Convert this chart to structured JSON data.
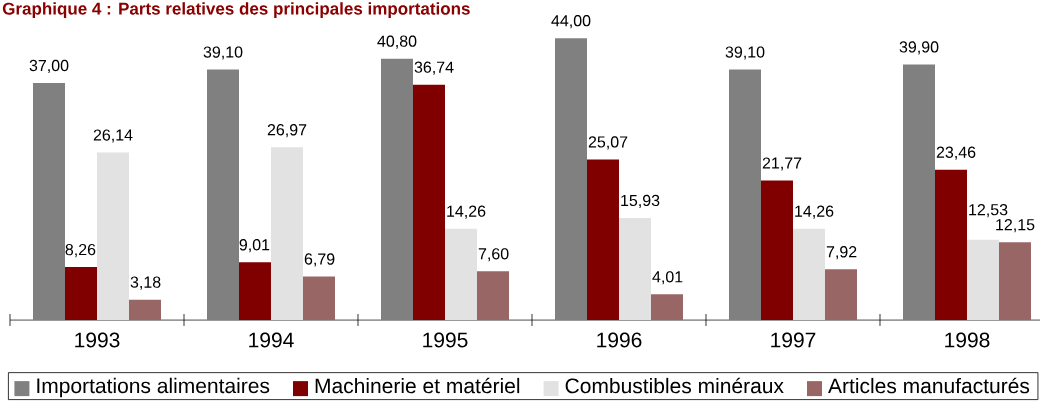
{
  "chart_data": {
    "type": "bar",
    "title": "Graphique 4 : Parts relatives des principales importations",
    "categories": [
      "1993",
      "1994",
      "1995",
      "1996",
      "1997",
      "1998"
    ],
    "series": [
      {
        "name": "Importations alimentaires",
        "color": "#808080",
        "values": [
          37.0,
          39.1,
          40.8,
          44.0,
          39.1,
          39.9
        ],
        "value_labels": [
          "37,00",
          "39,10",
          "40,80",
          "44,00",
          "39,10",
          "39,90"
        ]
      },
      {
        "name": "Machinerie et matériel",
        "color": "#800000",
        "values": [
          8.26,
          9.01,
          36.74,
          25.07,
          21.77,
          23.46
        ],
        "value_labels": [
          "8,26",
          "9,01",
          "36,74",
          "25,07",
          "21,77",
          "23,46"
        ]
      },
      {
        "name": "Combustibles minéraux",
        "color": "#e2e2e2",
        "values": [
          26.14,
          26.97,
          14.26,
          15.93,
          14.26,
          12.53
        ],
        "value_labels": [
          "26,14",
          "26,97",
          "14,26",
          "15,93",
          "14,26",
          "12,53"
        ]
      },
      {
        "name": "Articles manufacturés",
        "color": "#996666",
        "values": [
          3.18,
          6.79,
          7.6,
          4.01,
          7.92,
          12.15
        ],
        "value_labels": [
          "3,18",
          "6,79",
          "7,60",
          "4,01",
          "7,92",
          "12,15"
        ]
      }
    ],
    "legend": "bottom"
  }
}
